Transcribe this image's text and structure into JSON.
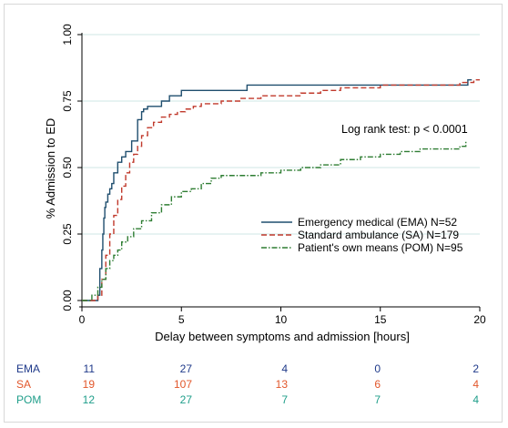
{
  "chart_data": {
    "type": "line",
    "step": true,
    "xlabel": "Delay between symptoms and admission [hours]",
    "ylabel": "% Admission to ED",
    "xlim": [
      0,
      20
    ],
    "ylim": [
      0,
      1
    ],
    "xticks": [
      "0",
      "5",
      "10",
      "15",
      "20"
    ],
    "yticks": [
      "0.00",
      "0.25",
      "0.50",
      "0.75",
      "1.00"
    ],
    "grid": "horizontal",
    "legend_position": "center-right",
    "annotation": "Log rank test: p < 0.0001",
    "series": [
      {
        "name": "Emergency medical (EMA) N=52",
        "color": "#1f4e6e",
        "style": "solid",
        "x": [
          0,
          0.8,
          0.9,
          1.0,
          1.05,
          1.1,
          1.15,
          1.2,
          1.3,
          1.4,
          1.5,
          1.6,
          1.8,
          2.0,
          2.2,
          2.5,
          2.8,
          3.0,
          3.1,
          3.3,
          3.6,
          4.0,
          4.4,
          4.8,
          5.0,
          5.4,
          5.8,
          6.2,
          6.6,
          7.2,
          8.3,
          10.0,
          19.3,
          19.4,
          19.6
        ],
        "y": [
          0.0,
          0.02,
          0.12,
          0.19,
          0.25,
          0.31,
          0.35,
          0.37,
          0.4,
          0.42,
          0.44,
          0.48,
          0.52,
          0.54,
          0.56,
          0.6,
          0.68,
          0.71,
          0.72,
          0.73,
          0.73,
          0.75,
          0.77,
          0.77,
          0.79,
          0.79,
          0.79,
          0.79,
          0.79,
          0.79,
          0.81,
          0.81,
          0.81,
          0.83,
          0.83
        ]
      },
      {
        "name": "Standard ambulance (SA) N=179",
        "color": "#c0392b",
        "style": "dashed",
        "x": [
          0,
          0.8,
          1.0,
          1.2,
          1.4,
          1.6,
          1.8,
          2.0,
          2.2,
          2.4,
          2.6,
          2.8,
          3.0,
          3.3,
          3.6,
          4.0,
          4.4,
          4.8,
          5.2,
          5.6,
          6.0,
          7.0,
          8.0,
          9.0,
          10.0,
          11.0,
          12.0,
          13.0,
          14.0,
          15.0,
          17.0,
          19.0,
          19.4,
          19.7,
          20.0
        ],
        "y": [
          0.0,
          0.02,
          0.08,
          0.17,
          0.25,
          0.32,
          0.38,
          0.43,
          0.48,
          0.52,
          0.55,
          0.58,
          0.62,
          0.65,
          0.67,
          0.69,
          0.7,
          0.71,
          0.72,
          0.73,
          0.74,
          0.75,
          0.76,
          0.77,
          0.77,
          0.78,
          0.79,
          0.8,
          0.8,
          0.81,
          0.81,
          0.82,
          0.82,
          0.83,
          0.83
        ]
      },
      {
        "name": "Patient's own means (POM) N=95",
        "color": "#2e7d32",
        "style": "dashdot",
        "x": [
          0,
          0.5,
          0.8,
          1.0,
          1.2,
          1.4,
          1.6,
          1.8,
          2.0,
          2.3,
          2.6,
          3.0,
          3.5,
          4.0,
          4.5,
          5.0,
          5.5,
          6.0,
          6.5,
          7.0,
          8.0,
          9.0,
          10.0,
          11.0,
          12.0,
          13.0,
          14.0,
          15.0,
          16.0,
          17.0,
          18.0,
          19.0,
          19.3
        ],
        "y": [
          0.0,
          0.02,
          0.05,
          0.08,
          0.12,
          0.15,
          0.17,
          0.19,
          0.22,
          0.24,
          0.27,
          0.3,
          0.33,
          0.36,
          0.39,
          0.41,
          0.42,
          0.44,
          0.46,
          0.47,
          0.47,
          0.48,
          0.49,
          0.5,
          0.51,
          0.53,
          0.54,
          0.55,
          0.56,
          0.57,
          0.57,
          0.58,
          0.6
        ]
      }
    ],
    "at_risk": {
      "rows": [
        {
          "label": "EMA",
          "color": "#1f3a8a",
          "values": [
            "11",
            "27",
            "4",
            "0",
            "2"
          ]
        },
        {
          "label": "SA",
          "color": "#e2572b",
          "values": [
            "19",
            "107",
            "13",
            "6",
            "4"
          ]
        },
        {
          "label": "POM",
          "color": "#1f9e8a",
          "values": [
            "12",
            "27",
            "7",
            "7",
            "4"
          ]
        }
      ]
    }
  }
}
